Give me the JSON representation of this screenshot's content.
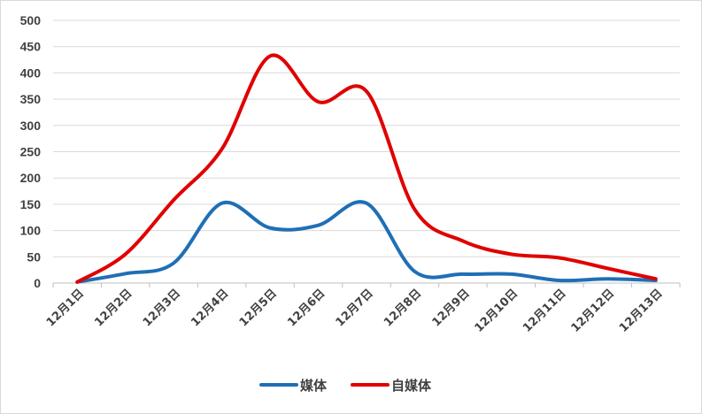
{
  "chart_data": {
    "type": "line",
    "smooth": true,
    "title": "",
    "xlabel": "",
    "ylabel": "",
    "categories": [
      "12月1日",
      "12月2日",
      "12月3日",
      "12月4日",
      "12月5日",
      "12月6日",
      "12月7日",
      "12月8日",
      "12月9日",
      "12月10日",
      "12月11日",
      "12月12日",
      "12月13日"
    ],
    "ylim": [
      0,
      500
    ],
    "yticks": [
      0,
      50,
      100,
      150,
      200,
      250,
      300,
      350,
      400,
      450,
      500
    ],
    "grid": true,
    "legend": "bottom",
    "series": [
      {
        "name": "媒体",
        "color": "#1f6fb5",
        "values": [
          2,
          18,
          38,
          152,
          105,
          110,
          152,
          22,
          17,
          17,
          5,
          8,
          5
        ]
      },
      {
        "name": "自媒体",
        "color": "#e00000",
        "values": [
          2,
          55,
          158,
          255,
          432,
          345,
          365,
          140,
          80,
          55,
          48,
          28,
          8
        ]
      }
    ]
  }
}
